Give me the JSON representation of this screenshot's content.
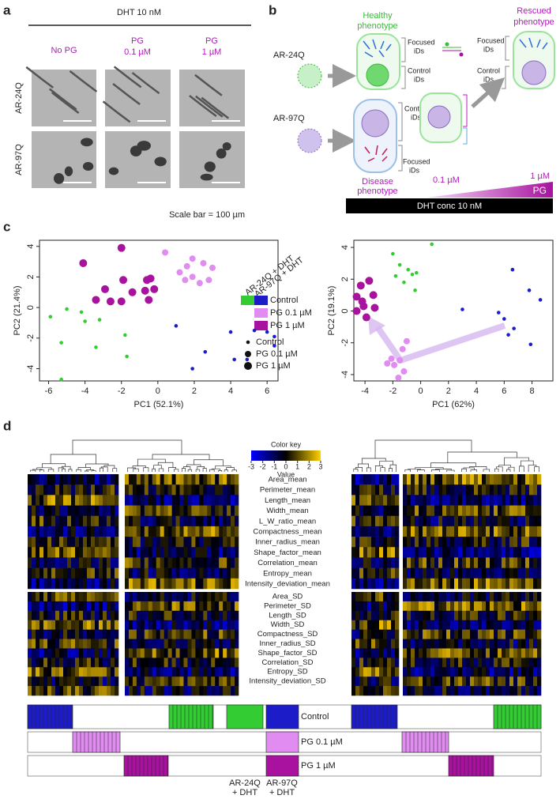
{
  "panel_a": {
    "letter": "a",
    "treatment": "DHT 10 nM",
    "columns": [
      [
        "No PG"
      ],
      [
        "PG",
        "0.1 µM"
      ],
      [
        "PG",
        "1 µM"
      ]
    ],
    "rows": [
      "AR-24Q",
      "AR-97Q"
    ],
    "scale_note": "Scale bar = 100 µm"
  },
  "panel_b": {
    "letter": "b",
    "healthy": [
      "Healthy",
      "phenotype"
    ],
    "rescued": [
      "Rescued",
      "phenotype"
    ],
    "disease": [
      "Disease",
      "phenotype"
    ],
    "cells": [
      "AR-24Q",
      "AR-97Q"
    ],
    "focused": [
      "Focused",
      "iDs"
    ],
    "control": [
      "Control",
      "iDs"
    ],
    "dose_low": "0.1 µM",
    "dose_high": "1 µM",
    "drug": "PG",
    "dht": "DHT conc 10 nM"
  },
  "panel_c": {
    "letter": "c",
    "legend": {
      "groups": [
        "AR-24Q + DHT",
        "AR-97Q + DHT"
      ],
      "size_rows": [
        "Control",
        "PG 0.1 µM",
        "PG 1 µM"
      ]
    }
  },
  "chart_data": [
    {
      "type": "scatter",
      "xlabel": "PC1 (52.1%)",
      "ylabel": "PC2 (21.4%)",
      "xlim": [
        -6.5,
        6.6
      ],
      "ylim": [
        -4.8,
        4.4
      ],
      "xticks": [
        -6,
        -4,
        -2,
        0,
        2,
        4,
        6
      ],
      "yticks": [
        -4,
        -2,
        0,
        2,
        4
      ],
      "series": [
        {
          "name": "Control",
          "color": "#33cc33",
          "x": [
            -5.9,
            -5.3,
            -5.3,
            -5.0,
            -4.2,
            -4.0,
            -3.4,
            -3.2,
            -1.8,
            -1.7
          ],
          "values": [
            -0.6,
            -2.3,
            -4.7,
            -0.1,
            -0.3,
            -0.9,
            -2.6,
            -0.8,
            -1.8,
            -3.2
          ]
        },
        {
          "name": "Control",
          "color": "#1c1cc8",
          "x": [
            1.0,
            1.9,
            2.6,
            4.0,
            4.2,
            4.9,
            5.3,
            6.0,
            6.4,
            6.4
          ],
          "values": [
            -1.2,
            -4.0,
            -2.9,
            -1.6,
            -3.4,
            -3.4,
            -1.5,
            -1.6,
            -1.9,
            -2.5
          ]
        },
        {
          "name": "PG 0.1 µM",
          "color": "#e08cf0",
          "x": [
            0.4,
            1.2,
            1.6,
            1.9,
            1.9,
            2.3,
            2.5,
            2.8,
            3.0,
            1.5
          ],
          "values": [
            3.6,
            2.3,
            2.7,
            2.0,
            3.2,
            1.6,
            2.9,
            1.8,
            2.6,
            1.8
          ]
        },
        {
          "name": "PG 1 µM",
          "color": "#a8129f",
          "x": [
            -4.1,
            -2.0,
            -1.9,
            -2.9,
            -3.4,
            -2.0,
            -1.4,
            -0.7,
            -0.6,
            -0.4,
            -0.2,
            -0.5,
            -2.6
          ],
          "values": [
            2.9,
            3.9,
            1.8,
            1.2,
            0.5,
            0.4,
            1.0,
            1.1,
            1.8,
            1.9,
            1.2,
            0.5,
            0.4
          ]
        }
      ]
    },
    {
      "type": "scatter",
      "xlabel": "PC1 (62%)",
      "ylabel": "PC2 (19.1%)",
      "xlim": [
        -4.8,
        9.5
      ],
      "ylim": [
        -4.4,
        4.45
      ],
      "xticks": [
        -4,
        -2,
        0,
        2,
        4,
        6,
        8
      ],
      "yticks": [
        -4,
        -2,
        0,
        2,
        4
      ],
      "series": [
        {
          "color": "#33cc33",
          "x": [
            -2.0,
            -1.5,
            -1.8,
            -1.2,
            -0.9,
            -0.6,
            -0.3,
            -0.4,
            0.8
          ],
          "values": [
            3.6,
            2.9,
            2.2,
            1.8,
            2.6,
            2.3,
            2.4,
            1.3,
            4.2
          ]
        },
        {
          "color": "#1c1cc8",
          "x": [
            3.0,
            5.6,
            6.0,
            6.3,
            6.7,
            6.6,
            7.8,
            7.9,
            8.6
          ],
          "values": [
            0.1,
            -0.1,
            -0.5,
            -1.5,
            -1.1,
            2.6,
            1.3,
            -2.1,
            0.7
          ]
        },
        {
          "color": "#e08cf0",
          "x": [
            -2.1,
            -1.9,
            -1.5,
            -1.3,
            -1.0,
            -1.6,
            -2.4,
            -1.2
          ],
          "values": [
            -3.0,
            -3.4,
            -3.1,
            -2.4,
            -1.9,
            -4.2,
            -3.3,
            -3.8
          ]
        },
        {
          "color": "#a8129f",
          "x": [
            -4.6,
            -4.3,
            -3.7,
            -4.2,
            -4.1,
            -3.3,
            -4.6,
            -3.9,
            -3.4
          ],
          "values": [
            0.9,
            1.6,
            1.9,
            0.6,
            0.3,
            0.2,
            0.0,
            -0.4,
            1.0
          ]
        }
      ]
    }
  ],
  "panel_d": {
    "letter": "d",
    "color_key": {
      "title": "Color key",
      "lim": [
        -3,
        3
      ],
      "ticks": [
        -3,
        -2,
        -1,
        0,
        1,
        2,
        3
      ],
      "label": "Value"
    },
    "features": [
      "Area_mean",
      "Perimeter_mean",
      "Length_mean",
      "Width_mean",
      "L_W_ratio_mean",
      "Compactness_mean",
      "Inner_radius_mean",
      "Shape_factor_mean",
      "Correlation_mean",
      "Entropy_mean",
      "Intensity_deviation_mean",
      "Area_SD",
      "Perimeter_SD",
      "Length_SD",
      "Width_SD",
      "Compactness_SD",
      "Inner_radius_SD",
      "Shape_factor_SD",
      "Correlation_SD",
      "Entropy_SD",
      "Intensity_deviation_SD"
    ],
    "tracks": [
      "Control",
      "PG 0.1 µM",
      "PG 1 µM"
    ],
    "groups": [
      [
        "AR-24Q",
        "+ DHT"
      ],
      [
        "AR-97Q",
        "+ DHT"
      ]
    ]
  }
}
